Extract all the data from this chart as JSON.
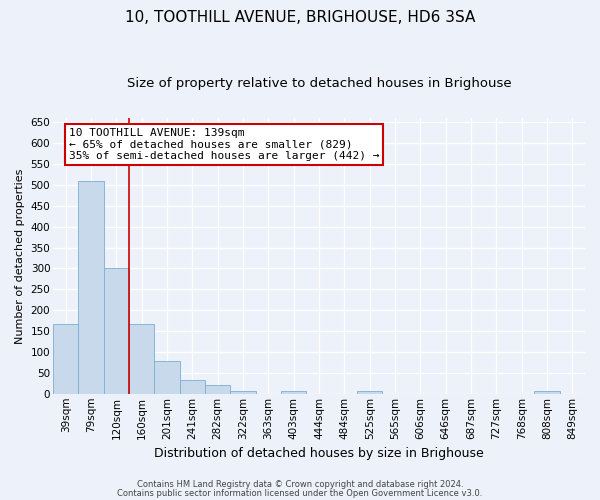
{
  "title": "10, TOOTHILL AVENUE, BRIGHOUSE, HD6 3SA",
  "subtitle": "Size of property relative to detached houses in Brighouse",
  "xlabel": "Distribution of detached houses by size in Brighouse",
  "ylabel": "Number of detached properties",
  "categories": [
    "39sqm",
    "79sqm",
    "120sqm",
    "160sqm",
    "201sqm",
    "241sqm",
    "282sqm",
    "322sqm",
    "363sqm",
    "403sqm",
    "444sqm",
    "484sqm",
    "525sqm",
    "565sqm",
    "606sqm",
    "646sqm",
    "687sqm",
    "727sqm",
    "768sqm",
    "808sqm",
    "849sqm"
  ],
  "values": [
    168,
    510,
    302,
    168,
    78,
    33,
    20,
    7,
    0,
    7,
    0,
    0,
    7,
    0,
    0,
    0,
    0,
    0,
    0,
    7,
    0
  ],
  "bar_color": "#c8d9ec",
  "bar_edge_color": "#7aafd4",
  "vline_pos": 2.5,
  "vline_color": "#cc0000",
  "annotation_text": "10 TOOTHILL AVENUE: 139sqm\n← 65% of detached houses are smaller (829)\n35% of semi-detached houses are larger (442) →",
  "annotation_box_color": "#ffffff",
  "annotation_box_edge": "#cc0000",
  "ylim": [
    0,
    660
  ],
  "yticks": [
    0,
    50,
    100,
    150,
    200,
    250,
    300,
    350,
    400,
    450,
    500,
    550,
    600,
    650
  ],
  "footer1": "Contains HM Land Registry data © Crown copyright and database right 2024.",
  "footer2": "Contains public sector information licensed under the Open Government Licence v3.0.",
  "bg_color": "#edf1f9",
  "grid_color": "#ffffff",
  "title_fontsize": 11,
  "subtitle_fontsize": 9.5,
  "xlabel_fontsize": 9,
  "ylabel_fontsize": 8,
  "tick_fontsize": 7.5,
  "footer_fontsize": 6,
  "annot_fontsize": 8
}
